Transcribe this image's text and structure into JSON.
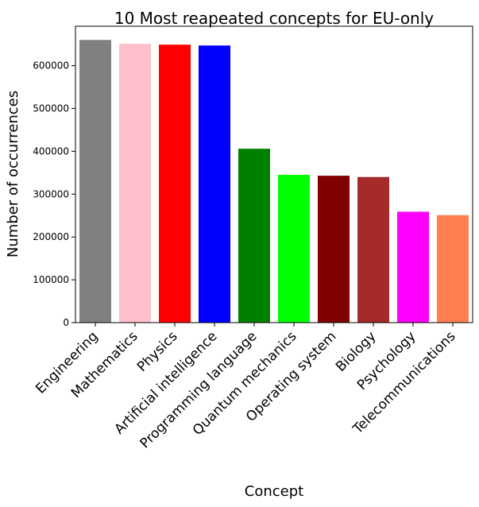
{
  "chart_data": {
    "type": "bar",
    "title": "10 Most reapeated concepts for EU-only",
    "xlabel": "Concept",
    "ylabel": "Number of occurrences",
    "categories": [
      "Engineering",
      "Mathematics",
      "Physics",
      "Artificial intelligence",
      "Programming language",
      "Quantum mechanics",
      "Operating system",
      "Biology",
      "Psychology",
      "Telecommunications"
    ],
    "values": [
      660000,
      651000,
      649000,
      647000,
      406000,
      345000,
      343000,
      340000,
      259000,
      251000
    ],
    "colors": [
      "#808080",
      "#ffc0cb",
      "#ff0000",
      "#0000ff",
      "#008000",
      "#00ff00",
      "#800000",
      "#a52a2a",
      "#ff00ff",
      "#ff7f50"
    ],
    "ylim": [
      0,
      692000
    ],
    "yticks": [
      0,
      100000,
      200000,
      300000,
      400000,
      500000,
      600000
    ],
    "ytick_labels": [
      "0",
      "100000",
      "200000",
      "300000",
      "400000",
      "500000",
      "600000"
    ],
    "grid": false,
    "legend": "none"
  }
}
